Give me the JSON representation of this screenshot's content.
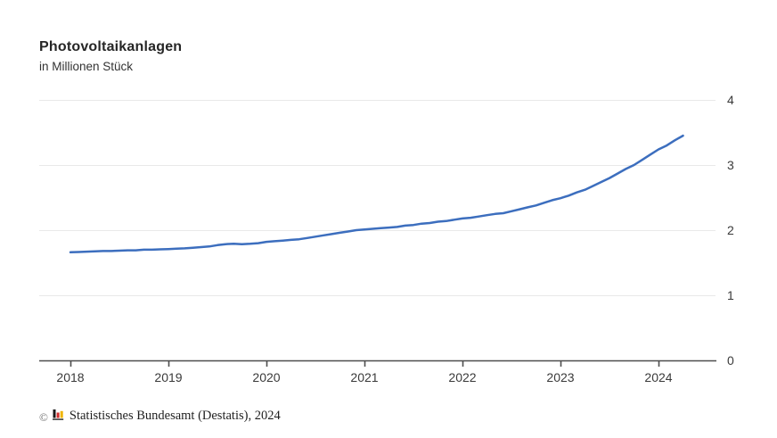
{
  "chart": {
    "title": "Photovoltaikanlagen",
    "subtitle": "in Millionen Stück"
  },
  "footer": {
    "copyright_symbol": "©",
    "source": "Statistisches Bundesamt (Destatis), 2024",
    "logo_colors": {
      "black": "#1a1a1a",
      "red": "#d22d2d",
      "gold": "#f0b400",
      "base": "#4d4d4d"
    }
  },
  "chart_data": {
    "type": "line",
    "title": "Photovoltaikanlagen",
    "subtitle": "in Millionen Stück",
    "ylabel": "Millionen Stück",
    "xlabel": "",
    "x_start": "2018-01",
    "x_end": "2024-04",
    "x_interval": "monthly",
    "x_tick_labels": [
      "2018",
      "2019",
      "2020",
      "2021",
      "2022",
      "2023",
      "2024"
    ],
    "y_ticks": [
      0,
      1,
      2,
      3,
      4
    ],
    "y_tick_labels": [
      "0",
      "1",
      "2",
      "3",
      "4"
    ],
    "ylim": [
      0,
      4
    ],
    "grid": "horizontal",
    "legend": "none",
    "line_color": "#3C6EBE",
    "gridline_color": "#e9e9e9",
    "axis_color": "#4d4d4d",
    "series": [
      {
        "name": "Photovoltaikanlagen",
        "values": [
          1.66,
          1.665,
          1.67,
          1.675,
          1.68,
          1.68,
          1.685,
          1.69,
          1.69,
          1.7,
          1.7,
          1.705,
          1.71,
          1.715,
          1.72,
          1.73,
          1.74,
          1.75,
          1.77,
          1.785,
          1.79,
          1.785,
          1.79,
          1.8,
          1.82,
          1.83,
          1.84,
          1.85,
          1.86,
          1.88,
          1.9,
          1.92,
          1.94,
          1.96,
          1.98,
          2.0,
          2.01,
          2.02,
          2.03,
          2.04,
          2.05,
          2.07,
          2.08,
          2.1,
          2.11,
          2.13,
          2.14,
          2.16,
          2.18,
          2.19,
          2.21,
          2.23,
          2.25,
          2.26,
          2.29,
          2.32,
          2.35,
          2.38,
          2.42,
          2.46,
          2.49,
          2.53,
          2.58,
          2.62,
          2.68,
          2.74,
          2.8,
          2.87,
          2.94,
          3.0,
          3.08,
          3.16,
          3.24,
          3.3,
          3.38,
          3.45
        ]
      }
    ]
  }
}
